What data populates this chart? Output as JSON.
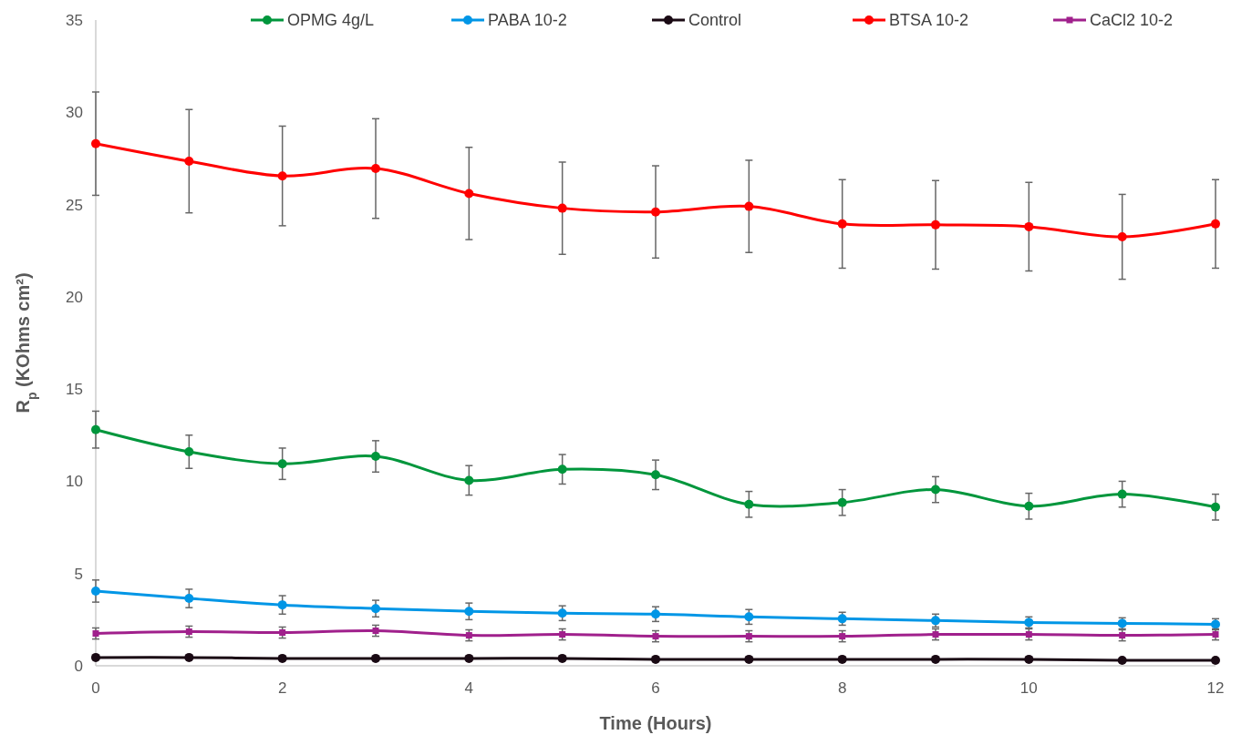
{
  "chart_data": {
    "type": "line",
    "xlabel": "Time (Hours)",
    "ylabel": "R$_{p}$ (KOhms cm²)",
    "x": [
      0,
      1,
      2,
      3,
      4,
      5,
      6,
      7,
      8,
      9,
      10,
      11,
      12
    ],
    "xlim": [
      0,
      12
    ],
    "xticks": [
      0,
      2,
      4,
      6,
      8,
      10,
      12
    ],
    "ylim": [
      0,
      35
    ],
    "yticks": [
      0,
      5,
      10,
      15,
      20,
      25,
      30,
      35
    ],
    "grid": false,
    "legend": "top",
    "marker": "circle",
    "line_style": "solid",
    "series": [
      {
        "name": "OPMG 4g/L",
        "color": "#00963c",
        "values": [
          12.8,
          11.6,
          10.95,
          11.35,
          10.05,
          10.65,
          10.35,
          8.75,
          8.85,
          9.55,
          8.65,
          9.3,
          8.6
        ],
        "errors": [
          1.0,
          0.9,
          0.85,
          0.85,
          0.8,
          0.8,
          0.8,
          0.7,
          0.7,
          0.7,
          0.7,
          0.7,
          0.7
        ]
      },
      {
        "name": "PABA 10-2",
        "color": "#0096e6",
        "values": [
          4.05,
          3.65,
          3.3,
          3.1,
          2.95,
          2.85,
          2.8,
          2.65,
          2.55,
          2.45,
          2.35,
          2.3,
          2.25
        ],
        "errors": [
          0.6,
          0.5,
          0.5,
          0.45,
          0.45,
          0.4,
          0.4,
          0.4,
          0.35,
          0.35,
          0.3,
          0.3,
          0.3
        ]
      },
      {
        "name": "Control",
        "color": "#1a0a14",
        "values": [
          0.45,
          0.45,
          0.4,
          0.4,
          0.4,
          0.4,
          0.35,
          0.35,
          0.35,
          0.35,
          0.35,
          0.3,
          0.3
        ]
      },
      {
        "name": "BTSA 10-2",
        "color": "#ff0000",
        "values": [
          28.3,
          27.35,
          26.55,
          26.95,
          25.6,
          24.8,
          24.6,
          24.9,
          23.95,
          23.9,
          23.8,
          23.25,
          23.95
        ],
        "errors": [
          2.8,
          2.8,
          2.7,
          2.7,
          2.5,
          2.5,
          2.5,
          2.5,
          2.4,
          2.4,
          2.4,
          2.3,
          2.4
        ]
      },
      {
        "name": "CaCl2 10-2",
        "color": "#a0208c",
        "marker": "square",
        "values": [
          1.75,
          1.85,
          1.8,
          1.9,
          1.65,
          1.7,
          1.6,
          1.6,
          1.6,
          1.7,
          1.7,
          1.65,
          1.7
        ],
        "errors": [
          0.3,
          0.3,
          0.3,
          0.3,
          0.3,
          0.3,
          0.3,
          0.3,
          0.3,
          0.3,
          0.3,
          0.3,
          0.3
        ]
      }
    ]
  }
}
